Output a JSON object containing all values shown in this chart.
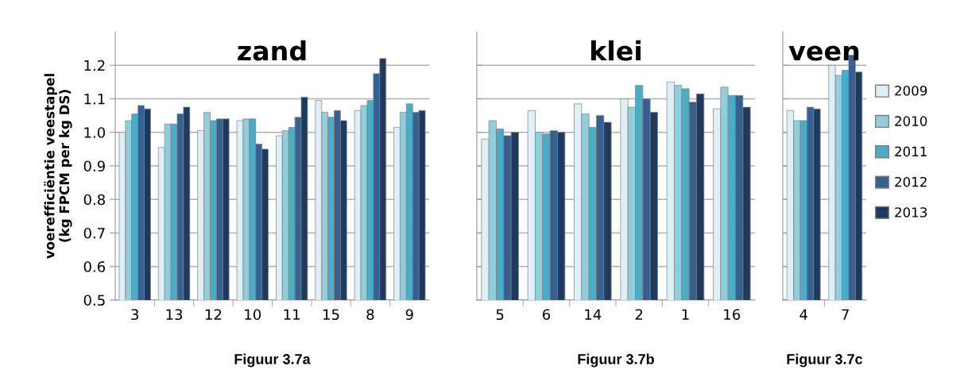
{
  "chart_data": [
    {
      "type": "bar",
      "title": "zand",
      "ylabel": "voerefficiëntie veestapel\n(kg FPCM per kg DS)",
      "categories": [
        "3",
        "13",
        "12",
        "10",
        "11",
        "15",
        "8",
        "9"
      ],
      "ylim": [
        0.5,
        1.3
      ],
      "yticks": [
        {
          "value": 0.5,
          "label": "0.5"
        },
        {
          "value": 0.6,
          "label": "0.6"
        },
        {
          "value": 0.7,
          "label": "0.7"
        },
        {
          "value": 0.8,
          "label": "0.8"
        },
        {
          "value": 0.9,
          "label": "0.9"
        },
        {
          "value": 1.0,
          "label": "1.0"
        },
        {
          "value": 1.1,
          "label": "1.1"
        },
        {
          "value": 1.2,
          "label": "1.2"
        }
      ],
      "grid": "y",
      "annotations": [
        "Figuur 3.7a"
      ],
      "series": [
        {
          "color": "#dcf0f5",
          "values": [
            1.0,
            0.955,
            1.005,
            1.035,
            0.99,
            1.095,
            1.065,
            1.015
          ]
        },
        {
          "color": "#92cddc",
          "values": [
            1.035,
            1.025,
            1.06,
            1.04,
            1.005,
            1.06,
            1.08,
            1.06
          ]
        },
        {
          "color": "#4bacc6",
          "values": [
            1.055,
            1.025,
            1.035,
            1.04,
            1.015,
            1.045,
            1.095,
            1.085
          ]
        },
        {
          "color": "#366092",
          "values": [
            1.08,
            1.055,
            1.04,
            0.965,
            1.045,
            1.065,
            1.175,
            1.06
          ]
        },
        {
          "color": "#1f3a5f",
          "values": [
            1.07,
            1.075,
            1.04,
            0.95,
            1.105,
            1.035,
            1.22,
            1.065
          ]
        }
      ]
    },
    {
      "type": "bar",
      "title": "klei",
      "categories": [
        "5",
        "6",
        "14",
        "2",
        "1",
        "16"
      ],
      "ylim": [
        0.5,
        1.3
      ],
      "yticks": [
        {
          "value": 0.5,
          "label": null
        },
        {
          "value": 0.6,
          "label": null
        },
        {
          "value": 0.7,
          "label": null
        },
        {
          "value": 0.8,
          "label": null
        },
        {
          "value": 0.9,
          "label": null
        },
        {
          "value": 1.0,
          "label": null
        },
        {
          "value": 1.1,
          "label": null
        },
        {
          "value": 1.2,
          "label": null
        }
      ],
      "tick_labels": "x",
      "grid": "y",
      "annotations": [
        "Figuur 3.7b"
      ],
      "series": [
        {
          "color": "#dcf0f5",
          "values": [
            0.98,
            1.065,
            1.085,
            1.1,
            1.15,
            1.07
          ]
        },
        {
          "color": "#92cddc",
          "values": [
            1.035,
            1.0,
            1.055,
            1.075,
            1.14,
            1.135
          ]
        },
        {
          "color": "#4bacc6",
          "values": [
            1.01,
            0.995,
            1.015,
            1.14,
            1.13,
            1.11
          ]
        },
        {
          "color": "#366092",
          "values": [
            0.99,
            1.005,
            1.05,
            1.1,
            1.09,
            1.11
          ]
        },
        {
          "color": "#1f3a5f",
          "values": [
            1.0,
            1.0,
            1.03,
            1.06,
            1.115,
            1.075
          ]
        }
      ]
    },
    {
      "type": "bar",
      "title": "veen",
      "categories": [
        "4",
        "7"
      ],
      "ylim": [
        0.5,
        1.3
      ],
      "yticks": [
        {
          "value": 0.5,
          "label": null
        },
        {
          "value": 0.6,
          "label": null
        },
        {
          "value": 0.7,
          "label": null
        },
        {
          "value": 0.8,
          "label": null
        },
        {
          "value": 0.9,
          "label": null
        },
        {
          "value": 1.0,
          "label": null
        },
        {
          "value": 1.1,
          "label": null
        },
        {
          "value": 1.2,
          "label": null
        }
      ],
      "tick_labels": "x",
      "grid": "y",
      "legend": "right",
      "annotations": [
        "Figuur 3.7c"
      ],
      "series": [
        {
          "name": "2009",
          "color": "#dcf0f5",
          "values": [
            1.065,
            1.2
          ]
        },
        {
          "name": "2010",
          "color": "#92cddc",
          "values": [
            1.035,
            1.17
          ]
        },
        {
          "name": "2011",
          "color": "#4bacc6",
          "values": [
            1.035,
            1.185
          ]
        },
        {
          "name": "2012",
          "color": "#366092",
          "values": [
            1.075,
            1.23
          ]
        },
        {
          "name": "2013",
          "color": "#1f3a5f",
          "values": [
            1.07,
            1.18
          ]
        }
      ]
    }
  ]
}
